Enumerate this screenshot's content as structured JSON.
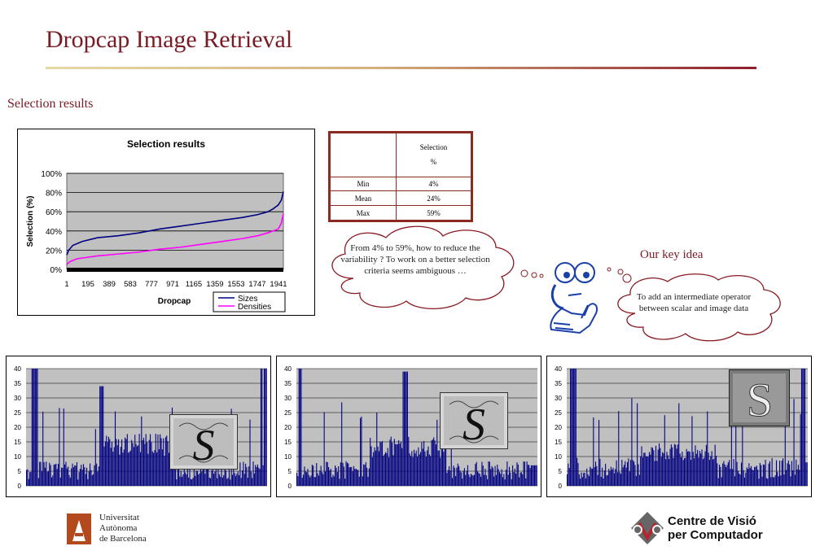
{
  "slide": {
    "title": "Dropcap Image Retrieval",
    "subtitle": "Selection results",
    "key_idea_title": "Our key idea",
    "thought_text": "From 4% to 59%, how to reduce the variability ? To work on a better selection criteria seems ambiguous …",
    "key_idea_text": "To add an intermediate operator between scalar and image data"
  },
  "table": {
    "header": [
      "",
      "Selection\n%"
    ],
    "rows": [
      {
        "label": "Min",
        "value": "4%"
      },
      {
        "label": "Mean",
        "value": "24%"
      },
      {
        "label": "Max",
        "value": "59%"
      }
    ]
  },
  "logos": {
    "uab_lines": [
      "Universitat",
      "Autònoma",
      "de Barcelona"
    ],
    "cvc_lines": [
      "Centre de Visió",
      "per Computador"
    ],
    "colors": {
      "uab": "#b34a1e",
      "cvc_gray": "#666666",
      "cvc_red": "#b3262e"
    }
  },
  "chart_data": [
    {
      "type": "line",
      "title": "Selection results",
      "xlabel": "Dropcap",
      "ylabel": "Selection (%)",
      "x_ticks": [
        "1",
        "195",
        "389",
        "583",
        "777",
        "971",
        "1165",
        "1359",
        "1553",
        "1747",
        "1941"
      ],
      "y_ticks": [
        "0%",
        "20%",
        "40%",
        "60%",
        "80%",
        "100%"
      ],
      "ylim": [
        0,
        100
      ],
      "xlim": [
        1,
        2100
      ],
      "legend": "bottom-right",
      "background": "#c0c0c0",
      "series": [
        {
          "name": "Sizes",
          "color": "#000080",
          "x": [
            1,
            20,
            60,
            150,
            300,
            500,
            700,
            900,
            1100,
            1300,
            1500,
            1700,
            1850,
            1950,
            2000,
            2050,
            2080,
            2100
          ],
          "y": [
            15,
            20,
            25,
            29,
            33,
            35,
            38,
            42,
            45,
            48,
            51,
            54,
            57,
            60,
            63,
            67,
            72,
            81
          ]
        },
        {
          "name": "Densities",
          "color": "#ff00ff",
          "x": [
            1,
            30,
            100,
            300,
            500,
            700,
            900,
            1100,
            1300,
            1500,
            1700,
            1850,
            1950,
            2050,
            2080,
            2100
          ],
          "y": [
            5,
            8,
            11,
            14,
            16,
            18,
            21,
            23,
            26,
            29,
            32,
            35,
            38,
            42,
            48,
            58
          ]
        }
      ]
    },
    {
      "type": "bar",
      "y_ticks": [
        "0",
        "5",
        "10",
        "15",
        "20",
        "25",
        "30",
        "35",
        "40"
      ],
      "ylim": [
        0,
        40
      ],
      "color": "#000080",
      "background": "#c0c0c0",
      "profile": {
        "base": 7,
        "mid_plateau": 17,
        "peaks": [
          27,
          34,
          40
        ]
      }
    },
    {
      "type": "bar",
      "y_ticks": [
        "0",
        "5",
        "10",
        "15",
        "20",
        "25",
        "30",
        "35",
        "40"
      ],
      "ylim": [
        0,
        40
      ],
      "color": "#000080",
      "background": "#c0c0c0",
      "profile": {
        "base": 7,
        "mid_plateau": 16,
        "peaks": [
          30,
          39,
          40
        ]
      }
    },
    {
      "type": "bar",
      "y_ticks": [
        "0",
        "5",
        "10",
        "15",
        "20",
        "25",
        "30",
        "35",
        "40"
      ],
      "ylim": [
        0,
        40
      ],
      "color": "#000080",
      "background": "#c0c0c0",
      "profile": {
        "base": 8,
        "mid_plateau": 14,
        "peaks": [
          31,
          25,
          40
        ]
      }
    }
  ]
}
